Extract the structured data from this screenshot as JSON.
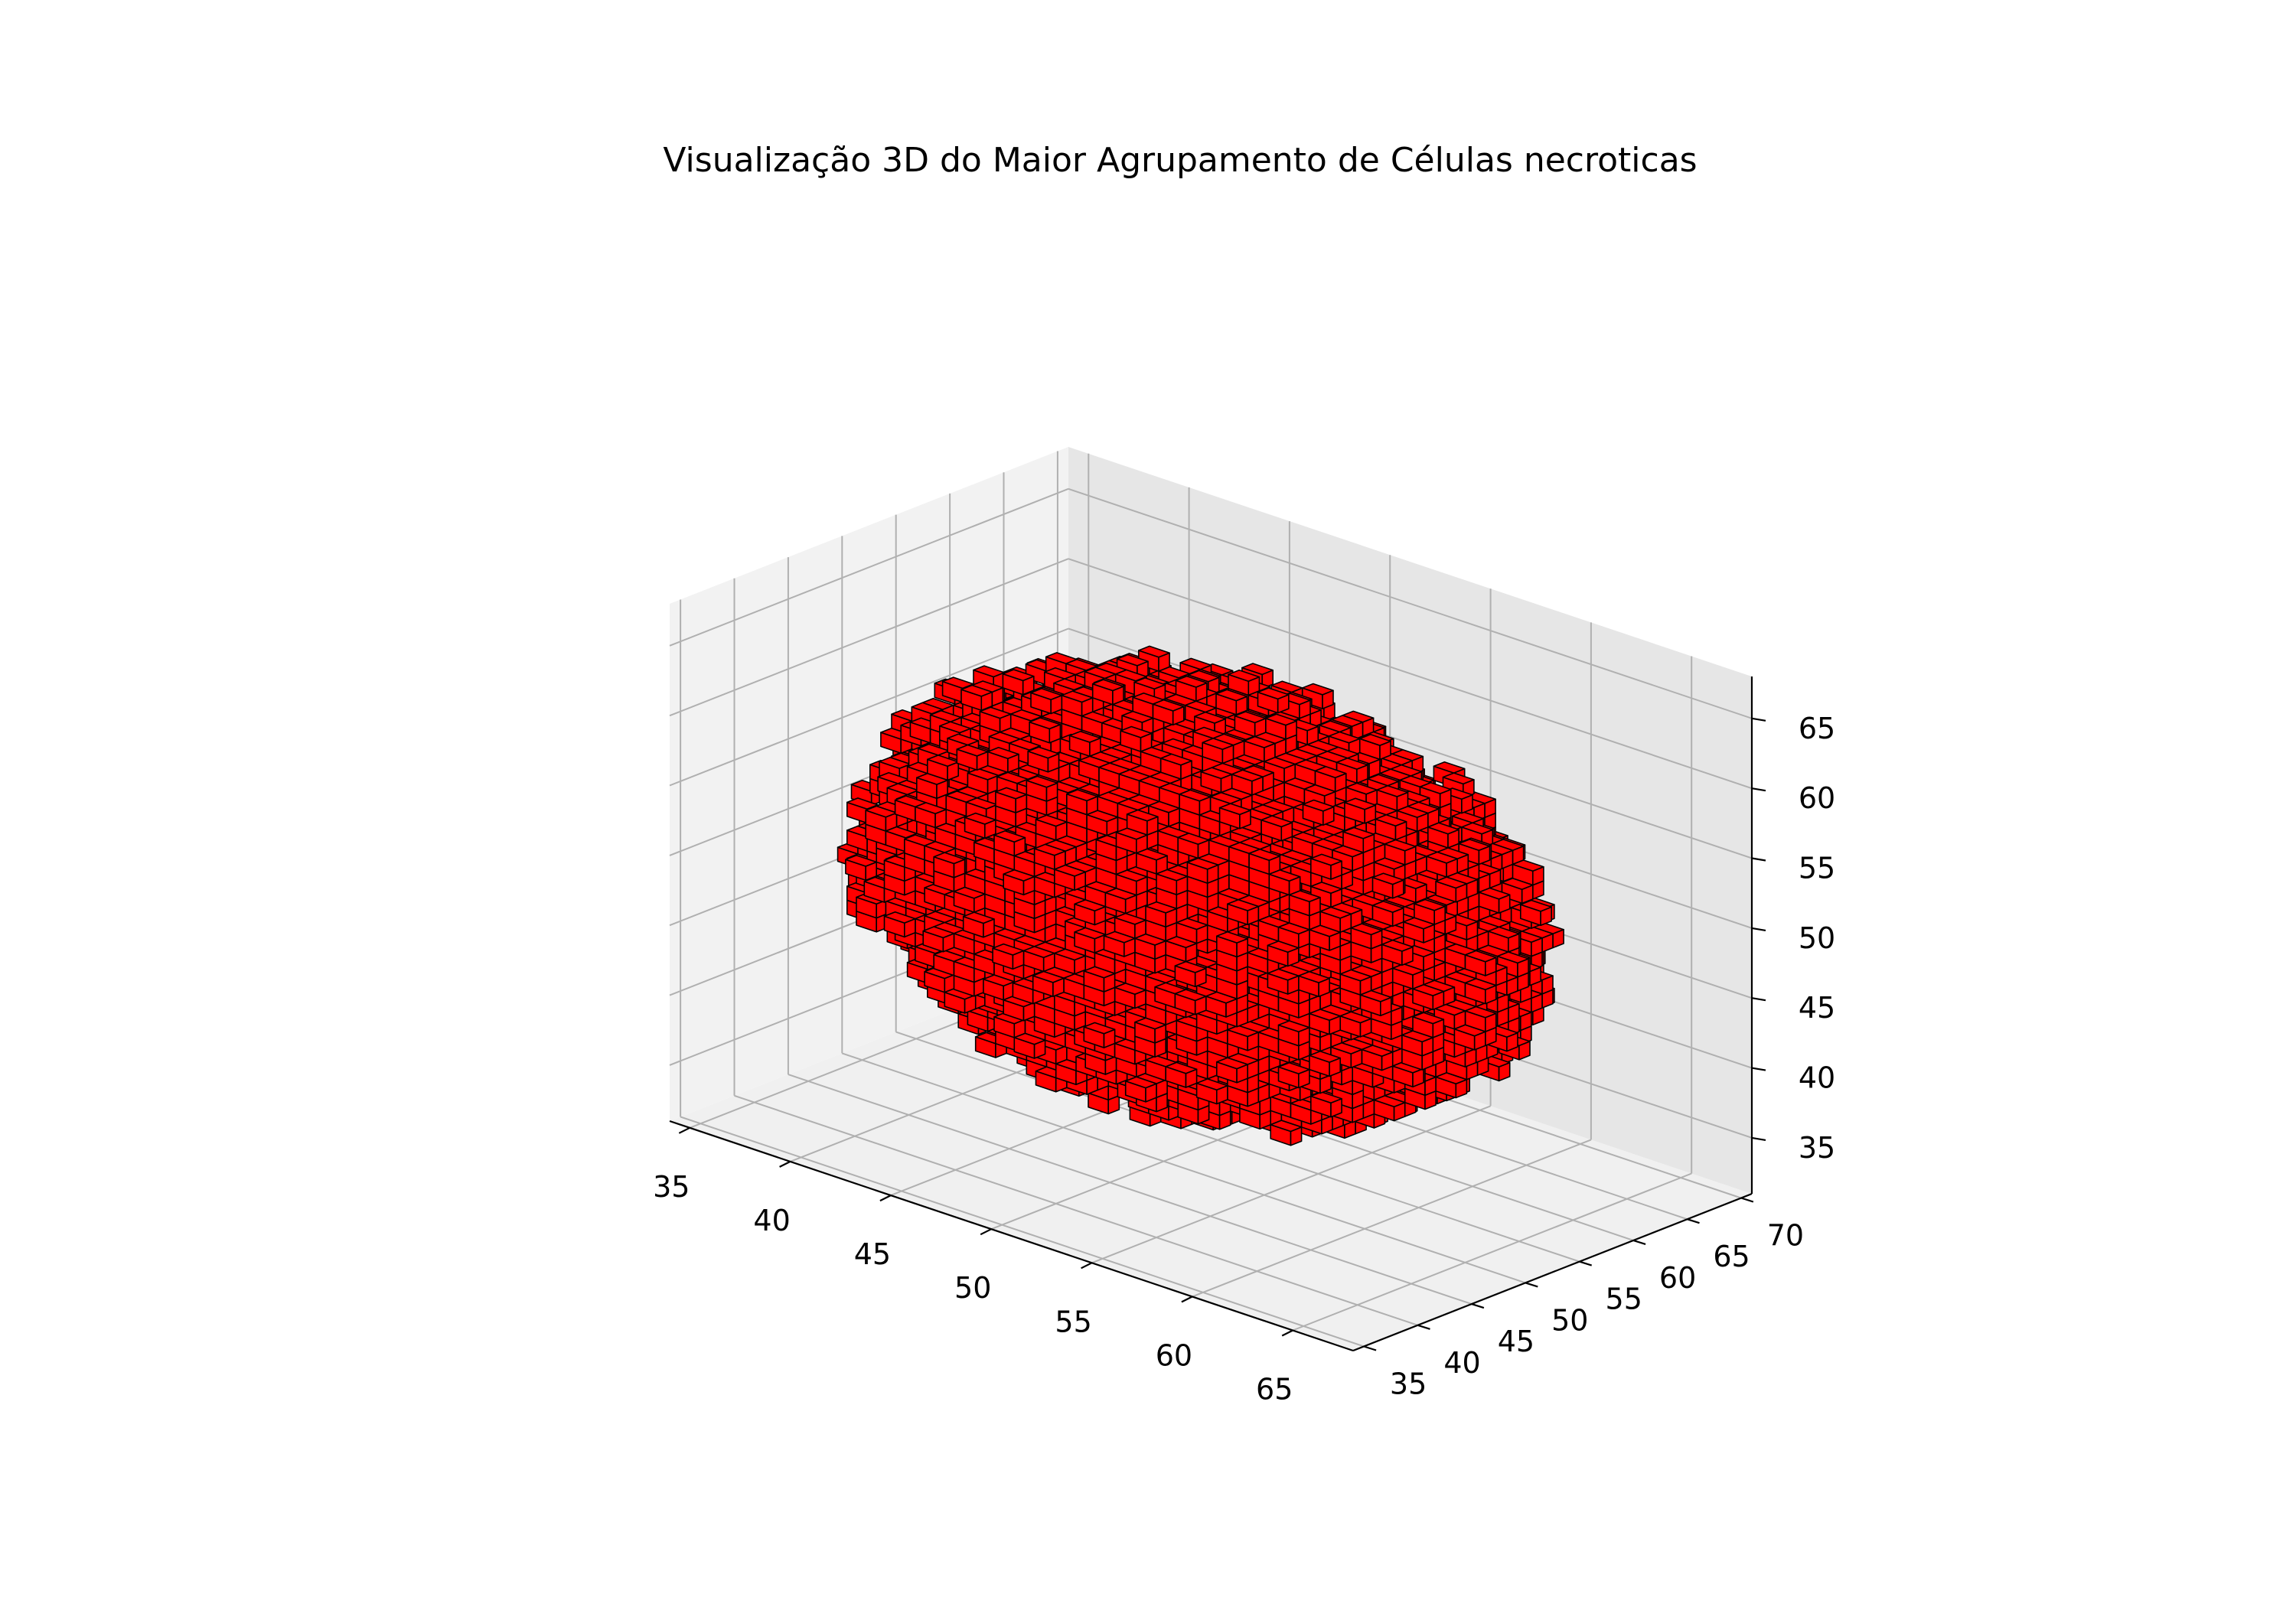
{
  "chart_data": {
    "type": "voxel-3d",
    "title": "Visualização 3D do Maior Agrupamento de Células necroticas",
    "xlabel": "",
    "ylabel": "",
    "zlabel": "",
    "x_ticks": [
      35,
      40,
      45,
      50,
      55,
      60,
      65
    ],
    "y_ticks": [
      35,
      40,
      45,
      50,
      55,
      60,
      65,
      70
    ],
    "z_ticks": [
      35,
      40,
      45,
      50,
      55,
      60,
      65
    ],
    "xlim": [
      34,
      68
    ],
    "ylim": [
      34,
      71
    ],
    "zlim": [
      31,
      68
    ],
    "grid": true,
    "series": [
      {
        "color": "#ff0000",
        "edgecolor": "#000000",
        "center": [
          50,
          52,
          49
        ],
        "radius": 14,
        "voxel_count_visible": "approx. 2000"
      }
    ]
  },
  "colors": {
    "voxel_face": "#ff0000",
    "voxel_edge": "#000000",
    "pane_left": "#f2f2f2",
    "pane_right": "#e6e6e6",
    "pane_floor": "#f0f0f0",
    "grid": "#b0b0b0"
  }
}
